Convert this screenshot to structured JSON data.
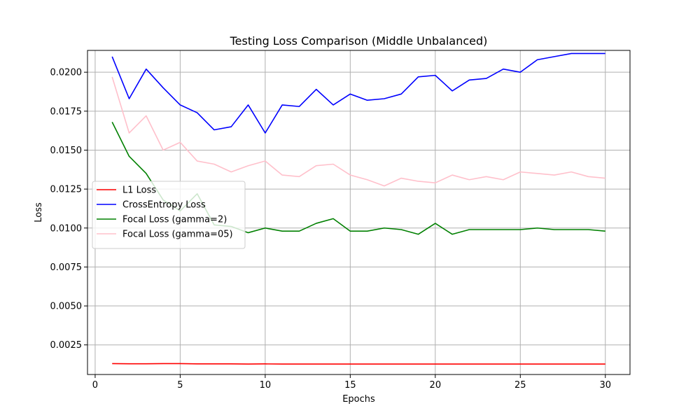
{
  "chart_data": {
    "type": "line",
    "title": "Testing Loss Comparison (Middle Unbalanced)",
    "xlabel": "Epochs",
    "ylabel": "Loss",
    "xlim": [
      -0.45,
      31.45
    ],
    "ylim": [
      0.0006,
      0.0214
    ],
    "xticks": [
      0,
      5,
      10,
      15,
      20,
      25,
      30
    ],
    "xtick_labels": [
      "0",
      "5",
      "10",
      "15",
      "20",
      "25",
      "30"
    ],
    "yticks": [
      0.0025,
      0.005,
      0.0075,
      0.01,
      0.0125,
      0.015,
      0.0175,
      0.02
    ],
    "ytick_labels": [
      "0.0025",
      "0.0050",
      "0.0075",
      "0.0100",
      "0.0125",
      "0.0150",
      "0.0175",
      "0.0200"
    ],
    "grid": true,
    "legend_position": "center-left",
    "x": [
      1,
      2,
      3,
      4,
      5,
      6,
      7,
      8,
      9,
      10,
      11,
      12,
      13,
      14,
      15,
      16,
      17,
      18,
      19,
      20,
      21,
      22,
      23,
      24,
      25,
      26,
      27,
      28,
      29,
      30
    ],
    "series": [
      {
        "name": "L1 Loss",
        "color": "#ff0000",
        "values": [
          0.0013,
          0.00129,
          0.00129,
          0.0013,
          0.0013,
          0.00128,
          0.00128,
          0.00128,
          0.00127,
          0.00128,
          0.00127,
          0.00127,
          0.00127,
          0.00127,
          0.00127,
          0.00127,
          0.00127,
          0.00127,
          0.00127,
          0.00127,
          0.00127,
          0.00127,
          0.00127,
          0.00127,
          0.00127,
          0.00127,
          0.00127,
          0.00127,
          0.00127,
          0.00127
        ]
      },
      {
        "name": "CrossEntropy Loss",
        "color": "#0000ff",
        "values": [
          0.021,
          0.0183,
          0.0202,
          0.019,
          0.0179,
          0.0174,
          0.0163,
          0.0165,
          0.0179,
          0.0161,
          0.0179,
          0.0178,
          0.0189,
          0.0179,
          0.0186,
          0.0182,
          0.0183,
          0.0186,
          0.0197,
          0.0198,
          0.0188,
          0.0195,
          0.0196,
          0.0202,
          0.02,
          0.0208,
          0.021,
          0.0212,
          0.0212,
          0.0212
        ]
      },
      {
        "name": "Focal Loss (gamma=2)",
        "color": "#008000",
        "values": [
          0.0168,
          0.0146,
          0.0135,
          0.0118,
          0.0111,
          0.0122,
          0.0102,
          0.0101,
          0.0097,
          0.01,
          0.0098,
          0.0098,
          0.0103,
          0.0106,
          0.0098,
          0.0098,
          0.01,
          0.0099,
          0.0096,
          0.0103,
          0.0096,
          0.0099,
          0.0099,
          0.0099,
          0.0099,
          0.01,
          0.0099,
          0.0099,
          0.0099,
          0.0098
        ]
      },
      {
        "name": "Focal Loss (gamma=05)",
        "color": "#ffc0cb",
        "values": [
          0.0197,
          0.0161,
          0.0172,
          0.015,
          0.0155,
          0.0143,
          0.0141,
          0.0136,
          0.014,
          0.0143,
          0.0134,
          0.0133,
          0.014,
          0.0141,
          0.0134,
          0.0131,
          0.0127,
          0.0132,
          0.013,
          0.0129,
          0.0134,
          0.0131,
          0.0133,
          0.0131,
          0.0136,
          0.0135,
          0.0134,
          0.0136,
          0.0133,
          0.0132
        ]
      }
    ]
  }
}
